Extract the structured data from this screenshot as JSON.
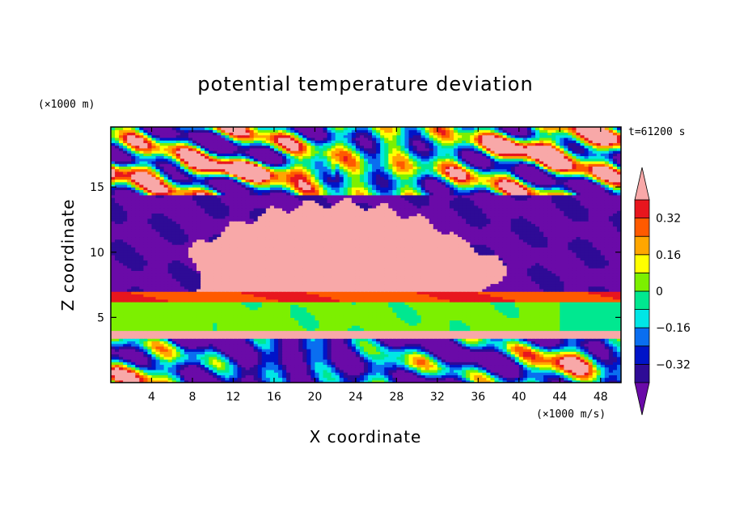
{
  "chart_data": {
    "type": "heatmap",
    "title": "potential temperature deviation",
    "xlabel": "X coordinate",
    "ylabel": "Z coordinate",
    "x_unit": "(×1000 m/s)",
    "y_unit": "(×1000 m)",
    "time_label": "t=61200 s",
    "xlim": [
      0,
      50
    ],
    "ylim": [
      0,
      19.6
    ],
    "x_ticks": [
      4,
      8,
      12,
      16,
      20,
      24,
      28,
      32,
      36,
      40,
      44,
      48
    ],
    "y_ticks": [
      5,
      10,
      15
    ],
    "colorbar": {
      "labels": [
        "0.32",
        "0.16",
        "0",
        "−0.16",
        "−0.32"
      ],
      "label_values": [
        0.32,
        0.16,
        0,
        -0.16,
        -0.32
      ],
      "levels": [
        -0.4,
        -0.32,
        -0.24,
        -0.16,
        -0.08,
        0,
        0.08,
        0.16,
        0.24,
        0.32,
        0.4
      ],
      "colors": [
        "#6a0aa8",
        "#2e0b96",
        "#0014c8",
        "#0a6ef0",
        "#00e6e6",
        "#00e890",
        "#7cf000",
        "#ffff00",
        "#ffa600",
        "#ff5a00",
        "#e8161e",
        "#f8a8a8"
      ]
    },
    "field_description": [
      {
        "z_range": [
          0,
          3.5
        ],
        "pattern": "turbulent mixed, red/yellow near surface at x 0-6 and 40-48"
      },
      {
        "z_range": [
          3.5,
          4.0
        ],
        "value": 0.4
      },
      {
        "z_range": [
          4.0,
          6.3
        ],
        "value": 0.02
      },
      {
        "z_range": [
          6.3,
          7.0
        ],
        "value": 0.3
      },
      {
        "z_range": [
          7.0,
          14.5
        ],
        "pattern": "pink plume x 8-36, purple elsewhere"
      },
      {
        "z_range": [
          14.5,
          19.6
        ],
        "pattern": "banded waves, mixed colors"
      }
    ]
  }
}
